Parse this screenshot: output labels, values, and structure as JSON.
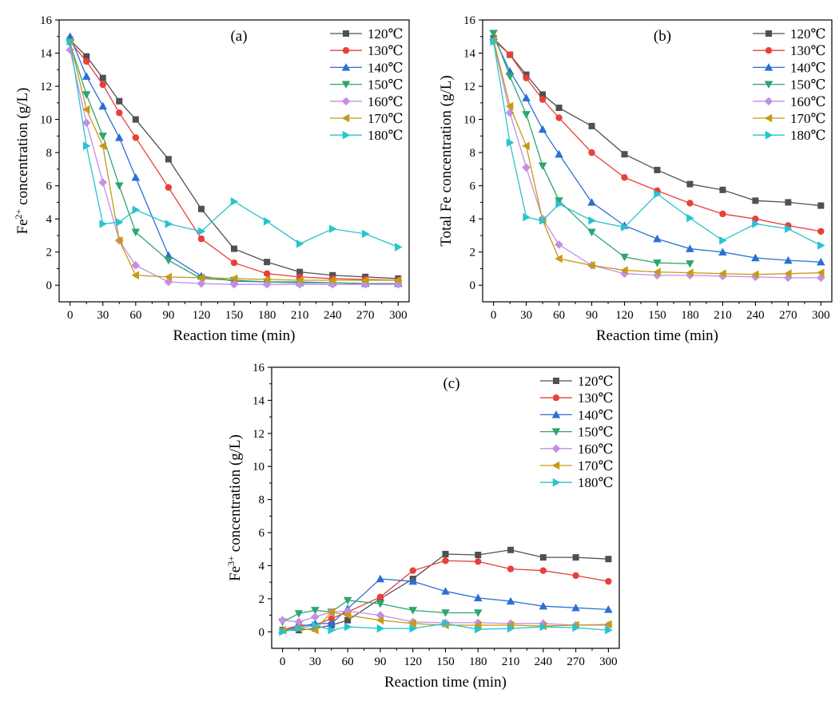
{
  "chart_data": [
    {
      "type": "line",
      "panel_label": "(a)",
      "xlabel": "Reaction time (min)",
      "ylabel_html": "Fe<tspan baseline-shift=\"super\" font-size=\"12\">2+</tspan> concentration (g/L)",
      "xlim": [
        -10,
        310
      ],
      "ylim": [
        -1,
        16
      ],
      "x_ticks": [
        0,
        30,
        60,
        90,
        120,
        150,
        180,
        210,
        240,
        270,
        300
      ],
      "y_ticks": [
        0,
        2,
        4,
        6,
        8,
        10,
        12,
        14,
        16
      ],
      "legend_position": "top-right",
      "series": [
        {
          "name": "120℃",
          "color": "#505050",
          "marker": "square",
          "x": [
            0,
            15,
            30,
            45,
            60,
            90,
            120,
            150,
            180,
            210,
            240,
            270,
            300
          ],
          "y": [
            14.8,
            13.8,
            12.5,
            11.1,
            10.0,
            7.6,
            4.6,
            2.2,
            1.4,
            0.8,
            0.6,
            0.5,
            0.4
          ]
        },
        {
          "name": "130℃",
          "color": "#e8403a",
          "marker": "circle",
          "x": [
            0,
            15,
            30,
            45,
            60,
            90,
            120,
            150,
            180,
            210,
            240,
            270,
            300
          ],
          "y": [
            14.7,
            13.5,
            12.1,
            10.4,
            8.9,
            5.9,
            2.8,
            1.35,
            0.7,
            0.5,
            0.4,
            0.35,
            0.3
          ]
        },
        {
          "name": "140℃",
          "color": "#2a6fd6",
          "marker": "triangle-up",
          "x": [
            0,
            15,
            30,
            45,
            60,
            90,
            120,
            150,
            180,
            210,
            240,
            270,
            300
          ],
          "y": [
            15.0,
            12.6,
            10.8,
            8.9,
            6.5,
            1.8,
            0.55,
            0.25,
            0.2,
            0.15,
            0.15,
            0.1,
            0.1
          ]
        },
        {
          "name": "150℃",
          "color": "#2ea66d",
          "marker": "triangle-down",
          "x": [
            0,
            15,
            30,
            45,
            60,
            90,
            120,
            150,
            180,
            210,
            240,
            270,
            300
          ],
          "y": [
            14.6,
            11.5,
            9.0,
            6.0,
            3.2,
            1.5,
            0.4,
            0.3,
            0.2,
            0.2,
            0.15,
            0.1,
            0.1
          ]
        },
        {
          "name": "160℃",
          "color": "#c48ee6",
          "marker": "diamond",
          "x": [
            0,
            15,
            30,
            45,
            60,
            90,
            120,
            150,
            180,
            210,
            240,
            270,
            300
          ],
          "y": [
            14.2,
            9.8,
            6.2,
            2.7,
            1.2,
            0.2,
            0.1,
            0.05,
            0.05,
            0.05,
            0.05,
            0.05,
            0.05
          ]
        },
        {
          "name": "170℃",
          "color": "#c79a16",
          "marker": "triangle-left",
          "x": [
            0,
            15,
            30,
            45,
            60,
            90,
            120,
            150,
            180,
            210,
            240,
            270,
            300
          ],
          "y": [
            14.7,
            10.6,
            8.4,
            2.7,
            0.6,
            0.5,
            0.45,
            0.4,
            0.35,
            0.3,
            0.3,
            0.3,
            0.3
          ]
        },
        {
          "name": "180℃",
          "color": "#28c3cf",
          "marker": "triangle-right",
          "x": [
            0,
            15,
            30,
            45,
            60,
            90,
            120,
            150,
            180,
            210,
            240,
            270,
            300
          ],
          "y": [
            14.7,
            8.4,
            3.7,
            3.8,
            4.55,
            3.7,
            3.25,
            5.05,
            3.85,
            2.5,
            3.4,
            3.1,
            2.3
          ]
        }
      ]
    },
    {
      "type": "line",
      "panel_label": "(b)",
      "xlabel": "Reaction time (min)",
      "ylabel_html": "Total Fe concentration (g/L)",
      "xlim": [
        -10,
        310
      ],
      "ylim": [
        -1,
        16
      ],
      "x_ticks": [
        0,
        30,
        60,
        90,
        120,
        150,
        180,
        210,
        240,
        270,
        300
      ],
      "y_ticks": [
        0,
        2,
        4,
        6,
        8,
        10,
        12,
        14,
        16
      ],
      "legend_position": "top-right",
      "series": [
        {
          "name": "120℃",
          "color": "#505050",
          "marker": "square",
          "x": [
            0,
            15,
            30,
            45,
            60,
            90,
            120,
            150,
            180,
            210,
            240,
            270,
            300
          ],
          "y": [
            14.9,
            13.9,
            12.7,
            11.5,
            10.7,
            9.6,
            7.9,
            6.95,
            6.1,
            5.75,
            5.1,
            5.0,
            4.8
          ]
        },
        {
          "name": "130℃",
          "color": "#e8403a",
          "marker": "circle",
          "x": [
            0,
            15,
            30,
            45,
            60,
            90,
            120,
            150,
            180,
            210,
            240,
            270,
            300
          ],
          "y": [
            14.8,
            13.9,
            12.5,
            11.2,
            10.1,
            8.0,
            6.5,
            5.7,
            4.95,
            4.3,
            4.0,
            3.6,
            3.25
          ]
        },
        {
          "name": "140℃",
          "color": "#2a6fd6",
          "marker": "triangle-up",
          "x": [
            0,
            15,
            30,
            45,
            60,
            90,
            120,
            150,
            180,
            210,
            240,
            270,
            300
          ],
          "y": [
            15.0,
            12.9,
            11.3,
            9.4,
            7.9,
            5.0,
            3.6,
            2.8,
            2.2,
            2.0,
            1.65,
            1.5,
            1.4
          ]
        },
        {
          "name": "150℃",
          "color": "#2ea66d",
          "marker": "triangle-down",
          "x": [
            0,
            15,
            30,
            45,
            60,
            90,
            120,
            150,
            180
          ],
          "y": [
            15.2,
            12.6,
            10.3,
            7.2,
            5.1,
            3.2,
            1.7,
            1.35,
            1.3
          ]
        },
        {
          "name": "160℃",
          "color": "#c48ee6",
          "marker": "diamond",
          "x": [
            0,
            15,
            30,
            45,
            60,
            90,
            120,
            150,
            180,
            210,
            240,
            270,
            300
          ],
          "y": [
            14.7,
            10.4,
            7.1,
            4.0,
            2.45,
            1.2,
            0.7,
            0.6,
            0.6,
            0.55,
            0.5,
            0.45,
            0.45
          ]
        },
        {
          "name": "170℃",
          "color": "#c79a16",
          "marker": "triangle-left",
          "x": [
            0,
            15,
            30,
            45,
            60,
            90,
            120,
            150,
            180,
            210,
            240,
            270,
            300
          ],
          "y": [
            14.8,
            10.8,
            8.4,
            3.9,
            1.6,
            1.2,
            0.9,
            0.8,
            0.75,
            0.7,
            0.65,
            0.7,
            0.75
          ]
        },
        {
          "name": "180℃",
          "color": "#28c3cf",
          "marker": "triangle-right",
          "x": [
            0,
            15,
            30,
            45,
            60,
            90,
            120,
            150,
            180,
            210,
            240,
            270,
            300
          ],
          "y": [
            14.7,
            8.6,
            4.1,
            3.9,
            4.9,
            3.9,
            3.5,
            5.5,
            4.05,
            2.7,
            3.7,
            3.4,
            2.4
          ]
        }
      ]
    },
    {
      "type": "line",
      "panel_label": "(c)",
      "xlabel": "Reaction time (min)",
      "ylabel_html": "Fe<tspan baseline-shift=\"super\" font-size=\"12\">3+</tspan> concentration (g/L)",
      "xlim": [
        -10,
        310
      ],
      "ylim": [
        -1,
        16
      ],
      "x_ticks": [
        0,
        30,
        60,
        90,
        120,
        150,
        180,
        210,
        240,
        270,
        300
      ],
      "y_ticks": [
        0,
        2,
        4,
        6,
        8,
        10,
        12,
        14,
        16
      ],
      "legend_position": "top-right",
      "series": [
        {
          "name": "120℃",
          "color": "#505050",
          "marker": "square",
          "x": [
            0,
            15,
            30,
            45,
            60,
            90,
            120,
            150,
            180,
            210,
            240,
            270,
            300
          ],
          "y": [
            0.1,
            0.1,
            0.2,
            0.4,
            0.7,
            2.0,
            3.2,
            4.7,
            4.65,
            4.95,
            4.5,
            4.5,
            4.4
          ]
        },
        {
          "name": "130℃",
          "color": "#e8403a",
          "marker": "circle",
          "x": [
            0,
            15,
            30,
            45,
            60,
            90,
            120,
            150,
            180,
            210,
            240,
            270,
            300
          ],
          "y": [
            0.1,
            0.4,
            0.4,
            0.8,
            1.2,
            2.1,
            3.7,
            4.3,
            4.25,
            3.8,
            3.7,
            3.4,
            3.05
          ]
        },
        {
          "name": "140℃",
          "color": "#2a6fd6",
          "marker": "triangle-up",
          "x": [
            0,
            15,
            30,
            45,
            60,
            90,
            120,
            150,
            180,
            210,
            240,
            270,
            300
          ],
          "y": [
            0.1,
            0.3,
            0.5,
            0.5,
            1.4,
            3.2,
            3.05,
            2.45,
            2.05,
            1.85,
            1.55,
            1.45,
            1.35
          ]
        },
        {
          "name": "150℃",
          "color": "#2ea66d",
          "marker": "triangle-down",
          "x": [
            0,
            15,
            30,
            45,
            60,
            90,
            120,
            150,
            180
          ],
          "y": [
            0.6,
            1.1,
            1.3,
            1.2,
            1.9,
            1.7,
            1.3,
            1.15,
            1.15
          ]
        },
        {
          "name": "160℃",
          "color": "#c48ee6",
          "marker": "diamond",
          "x": [
            0,
            15,
            30,
            45,
            60,
            90,
            120,
            150,
            180,
            210,
            240,
            270,
            300
          ],
          "y": [
            0.7,
            0.6,
            0.9,
            1.2,
            1.25,
            1.0,
            0.6,
            0.55,
            0.55,
            0.5,
            0.5,
            0.4,
            0.4
          ]
        },
        {
          "name": "170℃",
          "color": "#c79a16",
          "marker": "triangle-left",
          "x": [
            0,
            15,
            30,
            45,
            60,
            90,
            120,
            150,
            180,
            210,
            240,
            270,
            300
          ],
          "y": [
            0.1,
            0.2,
            0.1,
            1.2,
            1.0,
            0.7,
            0.5,
            0.4,
            0.4,
            0.4,
            0.35,
            0.4,
            0.45
          ]
        },
        {
          "name": "180℃",
          "color": "#28c3cf",
          "marker": "triangle-right",
          "x": [
            0,
            15,
            30,
            45,
            60,
            90,
            120,
            150,
            180,
            210,
            240,
            270,
            300
          ],
          "y": [
            0.0,
            0.2,
            0.4,
            0.1,
            0.3,
            0.2,
            0.2,
            0.5,
            0.15,
            0.2,
            0.3,
            0.25,
            0.1
          ]
        }
      ]
    }
  ]
}
